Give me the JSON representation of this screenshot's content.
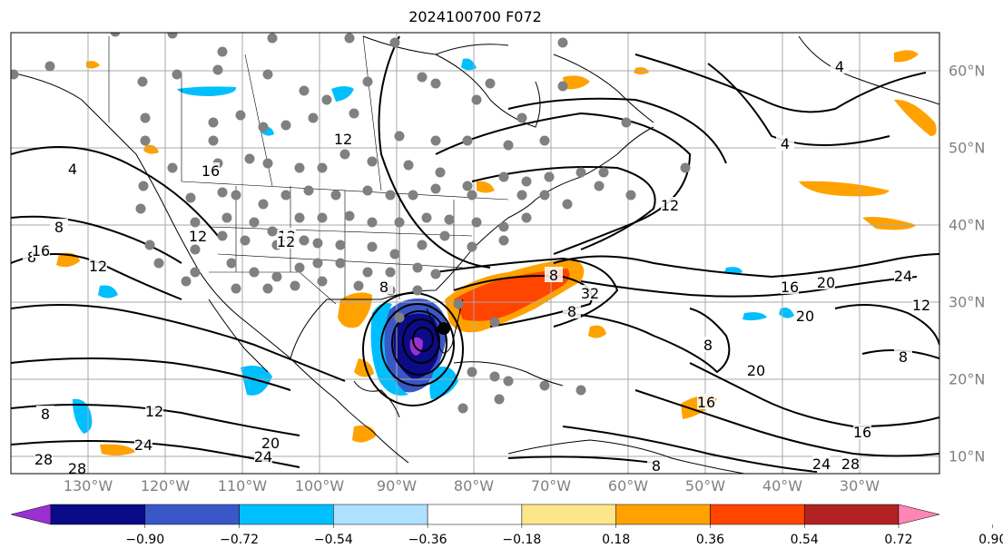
{
  "title": "2024100700 F072",
  "lon_labels": [
    "130°W",
    "120°W",
    "110°W",
    "100°W",
    "90°W",
    "80°W",
    "70°W",
    "60°W",
    "50°W",
    "40°W",
    "30°W"
  ],
  "lat_labels": [
    "60°N",
    "50°N",
    "40°N",
    "30°N",
    "20°N",
    "10°N"
  ],
  "contour_labels": [
    "4",
    "8",
    "8",
    "12",
    "16",
    "12",
    "12",
    "8",
    "12",
    "4",
    "4",
    "16",
    "12",
    "16",
    "20",
    "24",
    "12",
    "32",
    "8",
    "24",
    "20",
    "16",
    "20",
    "16",
    "24",
    "28",
    "20",
    "8",
    "8",
    "12",
    "24",
    "28",
    "28",
    "24",
    "8",
    "12",
    "8",
    "8"
  ],
  "colorbar": {
    "ticks": [
      "−0.90",
      "−0.72",
      "−0.54",
      "−0.36",
      "−0.18",
      "0.18",
      "0.36",
      "0.54",
      "0.72",
      "0.90"
    ],
    "colors": [
      "#9b30d0",
      "#0b0b88",
      "#3a57c8",
      "#00bfff",
      "#aee0ff",
      "#ffffff",
      "#fde68a",
      "#ffa200",
      "#ff4500",
      "#b22222",
      "#ff85b5"
    ]
  },
  "colors": {
    "station_marker": "#808080",
    "contour": "#000000",
    "grid": "#a9a9a9"
  }
}
